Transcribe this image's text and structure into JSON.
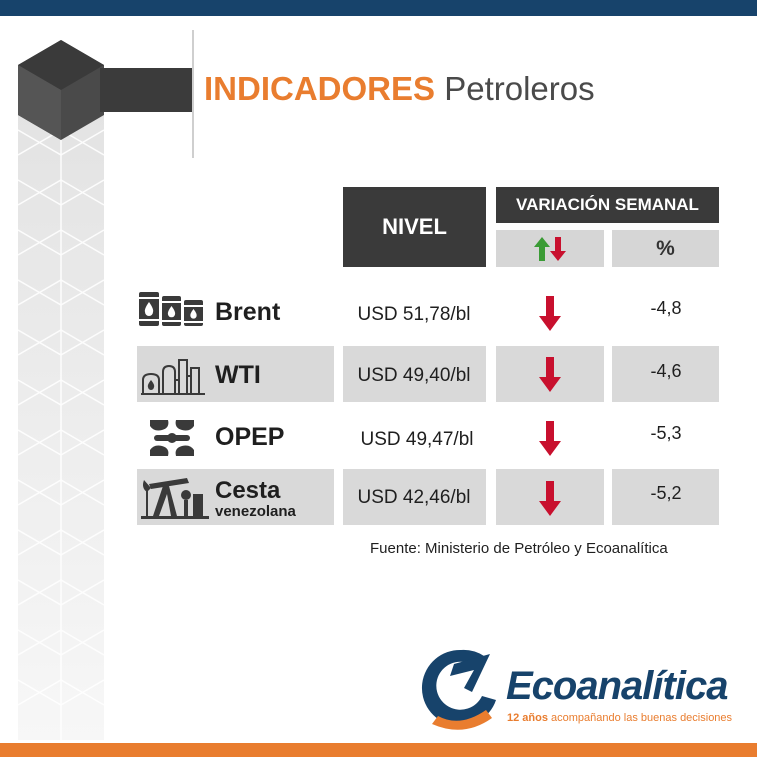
{
  "title": {
    "highlight": "INDICADORES",
    "rest": "Petroleros"
  },
  "headers": {
    "nivel": "NIVEL",
    "variacion": "VARIACIÓN SEMANAL",
    "percent": "%"
  },
  "rows": [
    {
      "name": "Brent",
      "subname": "",
      "level": "USD 51,78/bl",
      "direction": "down",
      "change": "-4,8",
      "icon": "oil-barrels-icon"
    },
    {
      "name": "WTI",
      "subname": "",
      "level": "USD 49,40/bl",
      "direction": "down",
      "change": "-4,6",
      "icon": "refinery-icon"
    },
    {
      "name": "OPEP",
      "subname": "",
      "level": "USD 49,47/bl",
      "direction": "down",
      "change": "-5,3",
      "icon": "opec-logo-icon"
    },
    {
      "name": "Cesta",
      "subname": "venezolana",
      "level": "USD 42,46/bl",
      "direction": "down",
      "change": "-5,2",
      "icon": "pumpjack-icon"
    }
  ],
  "source": "Fuente: Ministerio de Petróleo y Ecoanalítica",
  "brand": {
    "name": "Ecoanalítica",
    "tagline_bold": "12 años",
    "tagline_rest": " acompañando las buenas decisiones"
  },
  "colors": {
    "navy": "#17436b",
    "orange": "#e97d2f",
    "dark": "#3a3a3a",
    "arrow_red": "#c8102e",
    "arrow_green": "#3a9b35"
  }
}
